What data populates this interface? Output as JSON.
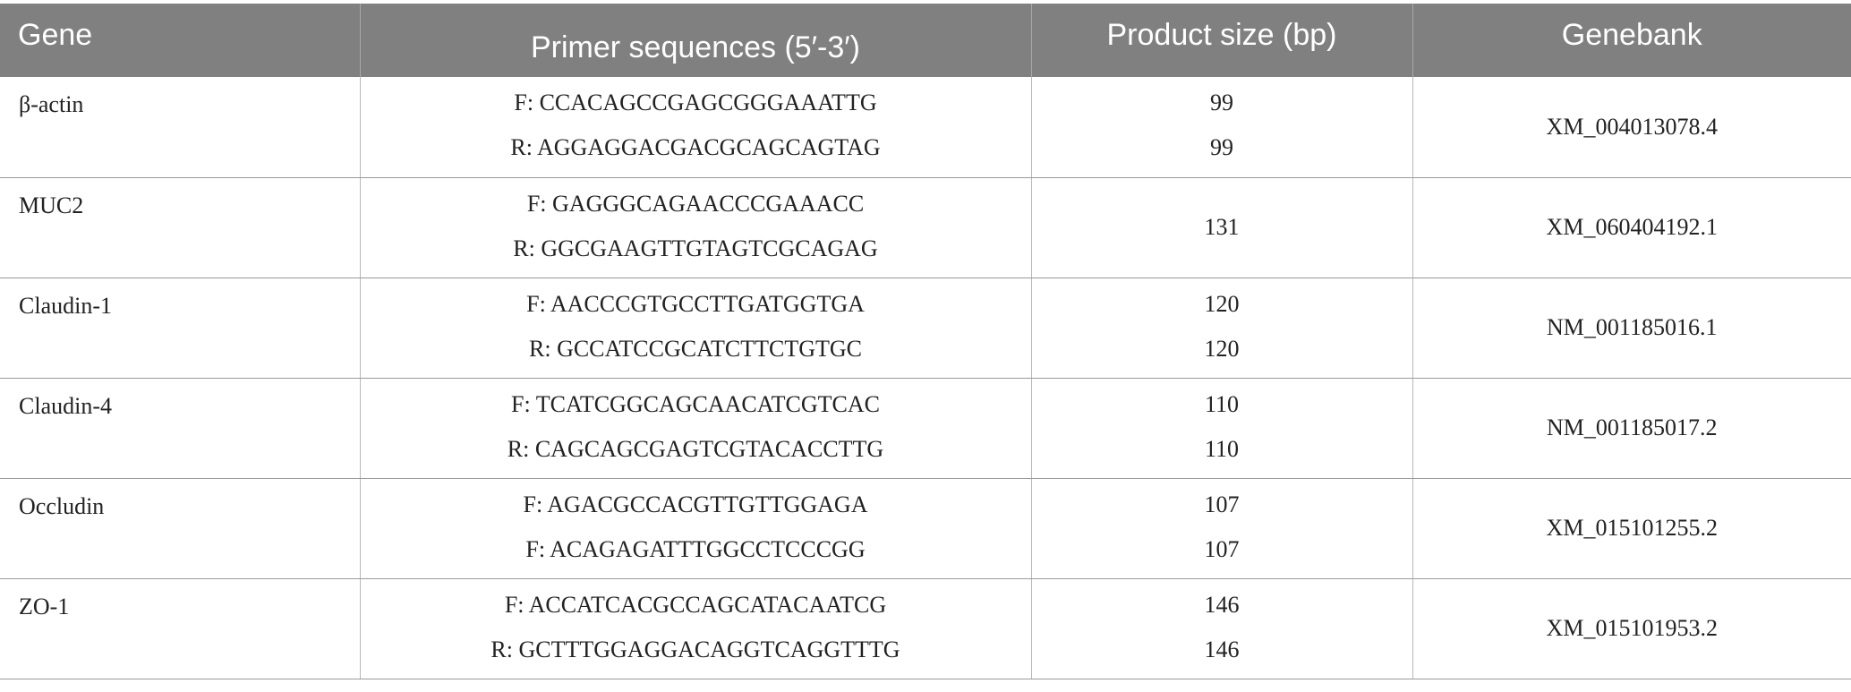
{
  "table": {
    "headers": {
      "gene": "Gene",
      "primer": "Primer sequences (5′-3′)",
      "size": "Product size (bp)",
      "bank": "Genebank"
    },
    "rows": [
      {
        "gene": "β-actin",
        "primer_f": "F: CCACAGCCGAGCGGGAAATTG",
        "primer_r": "R: AGGAGGACGACGCAGCAGTAG",
        "size_f": "99",
        "size_r": "99",
        "bank": "XM_004013078.4"
      },
      {
        "gene": "MUC2",
        "primer_f": "F: GAGGGCAGAACCCGAAACC",
        "primer_r": "R: GGCGAAGTTGTAGTCGCAGAG",
        "size": "131",
        "bank": "XM_060404192.1"
      },
      {
        "gene": "Claudin-1",
        "primer_f": "F: AACCCGTGCCTTGATGGTGA",
        "primer_r": "R: GCCATCCGCATCTTCTGTGC",
        "size_f": "120",
        "size_r": "120",
        "bank": "NM_001185016.1"
      },
      {
        "gene": "Claudin-4",
        "primer_f": "F: TCATCGGCAGCAACATCGTCAC",
        "primer_r": "R: CAGCAGCGAGTCGTACACCTTG",
        "size_f": "110",
        "size_r": "110",
        "bank": "NM_001185017.2"
      },
      {
        "gene": "Occludin",
        "primer_f": "F: AGACGCCACGTTGTTGGAGA",
        "primer_r": "F: ACAGAGATTTGGCCTCCCGG",
        "size_f": "107",
        "size_r": "107",
        "bank": "XM_015101255.2"
      },
      {
        "gene": "ZO-1",
        "primer_f": "F: ACCATCACGCCAGCATACAATCG",
        "primer_r": "R: GCTTTGGAGGACAGGTCAGGTTTG",
        "size_f": "146",
        "size_r": "146",
        "bank": "XM_015101953.2"
      }
    ]
  }
}
